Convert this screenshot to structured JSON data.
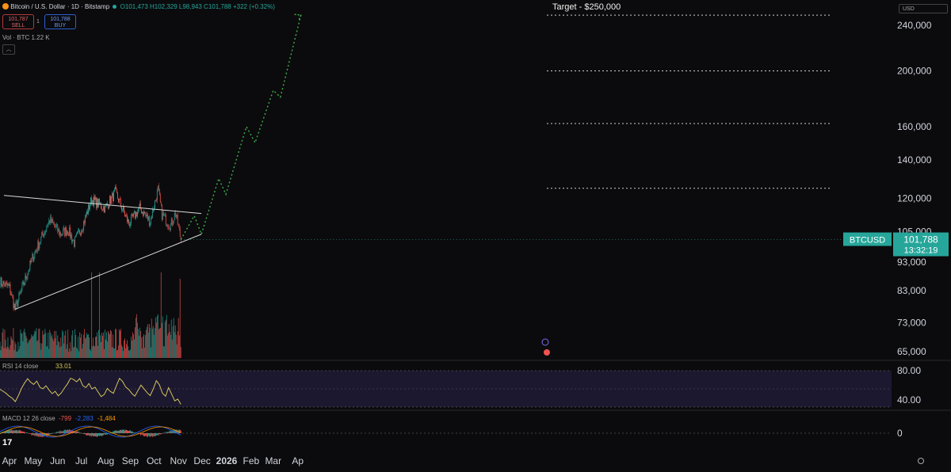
{
  "header": {
    "symbol": "Bitcoin / U.S. Dollar · 1D · Bitstamp",
    "ohlc": "O101,473  H102,329  L98,943  C101,788  +322 (+0.32%)",
    "sell_price": "101,787",
    "sell_label": "SELL",
    "spread": "1",
    "buy_price": "101,788",
    "buy_label": "BUY",
    "volume": "Vol · BTC  1.22 K",
    "currency": "USD",
    "up_color": "#26a69a",
    "down_color": "#ef5350"
  },
  "chart_data": {
    "type": "candlestick",
    "price_axis": {
      "scale": "log",
      "ticks": [
        "240,000",
        "200,000",
        "160,000",
        "140,000",
        "120,000",
        "105,000",
        "93,000",
        "83,000",
        "73,000",
        "65,000"
      ]
    },
    "time_axis": {
      "labels": [
        "Apr",
        "May",
        "Jun",
        "Jul",
        "Aug",
        "Sep",
        "Oct",
        "Nov",
        "Dec",
        "2026",
        "Feb",
        "Mar",
        "Ap"
      ]
    },
    "last_price": {
      "symbol": "BTCUSD",
      "price": "101,788",
      "countdown": "13:32:19",
      "color": "#26a69a"
    },
    "annotations": {
      "target_label": "Target - $250,000",
      "target_levels": [
        250000,
        200000,
        162000,
        125000
      ]
    },
    "price_path": [
      [
        "2025-03-20",
        86000
      ],
      [
        "2025-04-01",
        84000
      ],
      [
        "2025-04-08",
        77000
      ],
      [
        "2025-04-20",
        86000
      ],
      [
        "2025-04-30",
        94500
      ],
      [
        "2025-05-12",
        103000
      ],
      [
        "2025-05-22",
        110000
      ],
      [
        "2025-06-05",
        104000
      ],
      [
        "2025-06-14",
        106000
      ],
      [
        "2025-06-22",
        100500
      ],
      [
        "2025-07-03",
        108000
      ],
      [
        "2025-07-14",
        119500
      ],
      [
        "2025-07-31",
        115500
      ],
      [
        "2025-08-13",
        123000
      ],
      [
        "2025-08-30",
        108500
      ],
      [
        "2025-09-13",
        115500
      ],
      [
        "2025-09-26",
        109500
      ],
      [
        "2025-10-06",
        124500
      ],
      [
        "2025-10-11",
        112500
      ],
      [
        "2025-10-22",
        107500
      ],
      [
        "2025-10-28",
        113500
      ],
      [
        "2025-11-04",
        101788
      ]
    ],
    "projection_path": [
      [
        "2025-11-04",
        101788
      ],
      [
        "2025-11-21",
        112000
      ],
      [
        "2025-11-30",
        104000
      ],
      [
        "2025-12-22",
        130000
      ],
      [
        "2025-12-31",
        122000
      ],
      [
        "2026-01-26",
        160000
      ],
      [
        "2026-02-06",
        150000
      ],
      [
        "2026-03-01",
        185000
      ],
      [
        "2026-03-10",
        180000
      ],
      [
        "2026-04-05",
        250000
      ]
    ],
    "trendlines": [
      {
        "from": [
          "2025-03-25",
          121500
        ],
        "to": [
          "2025-11-30",
          113000
        ],
        "color": "#d9d9d9"
      },
      {
        "from": [
          "2025-04-08",
          77000
        ],
        "to": [
          "2025-11-30",
          104000
        ],
        "color": "#d9d9d9"
      }
    ],
    "volume_spikes": [
      "2025-07-14",
      "2025-07-24",
      "2025-10-10",
      "2025-11-03"
    ],
    "rsi": {
      "label": "RSI 14 close",
      "value": "33.01",
      "ticks": [
        "80.00",
        "40.00"
      ],
      "color": "#d4c45c",
      "series": [
        55,
        52,
        48,
        45,
        42,
        38,
        46,
        55,
        62,
        68,
        64,
        62,
        66,
        58,
        56,
        60,
        54,
        48,
        52,
        46,
        50,
        56,
        62,
        70,
        68,
        64,
        70,
        60,
        56,
        62,
        54,
        58,
        50,
        44,
        48,
        56,
        52,
        48,
        60,
        70,
        64,
        58,
        54,
        48,
        44,
        52,
        60,
        56,
        50,
        46,
        54,
        66,
        60,
        50,
        44,
        56,
        48,
        38,
        42,
        33.01
      ]
    },
    "macd": {
      "label": "MACD 12 26 close",
      "values": [
        "-799",
        "-2,283",
        "-1,484"
      ],
      "zero_tick": "0",
      "hist_up": "#26a69a",
      "hist_down": "#ef5350"
    }
  }
}
